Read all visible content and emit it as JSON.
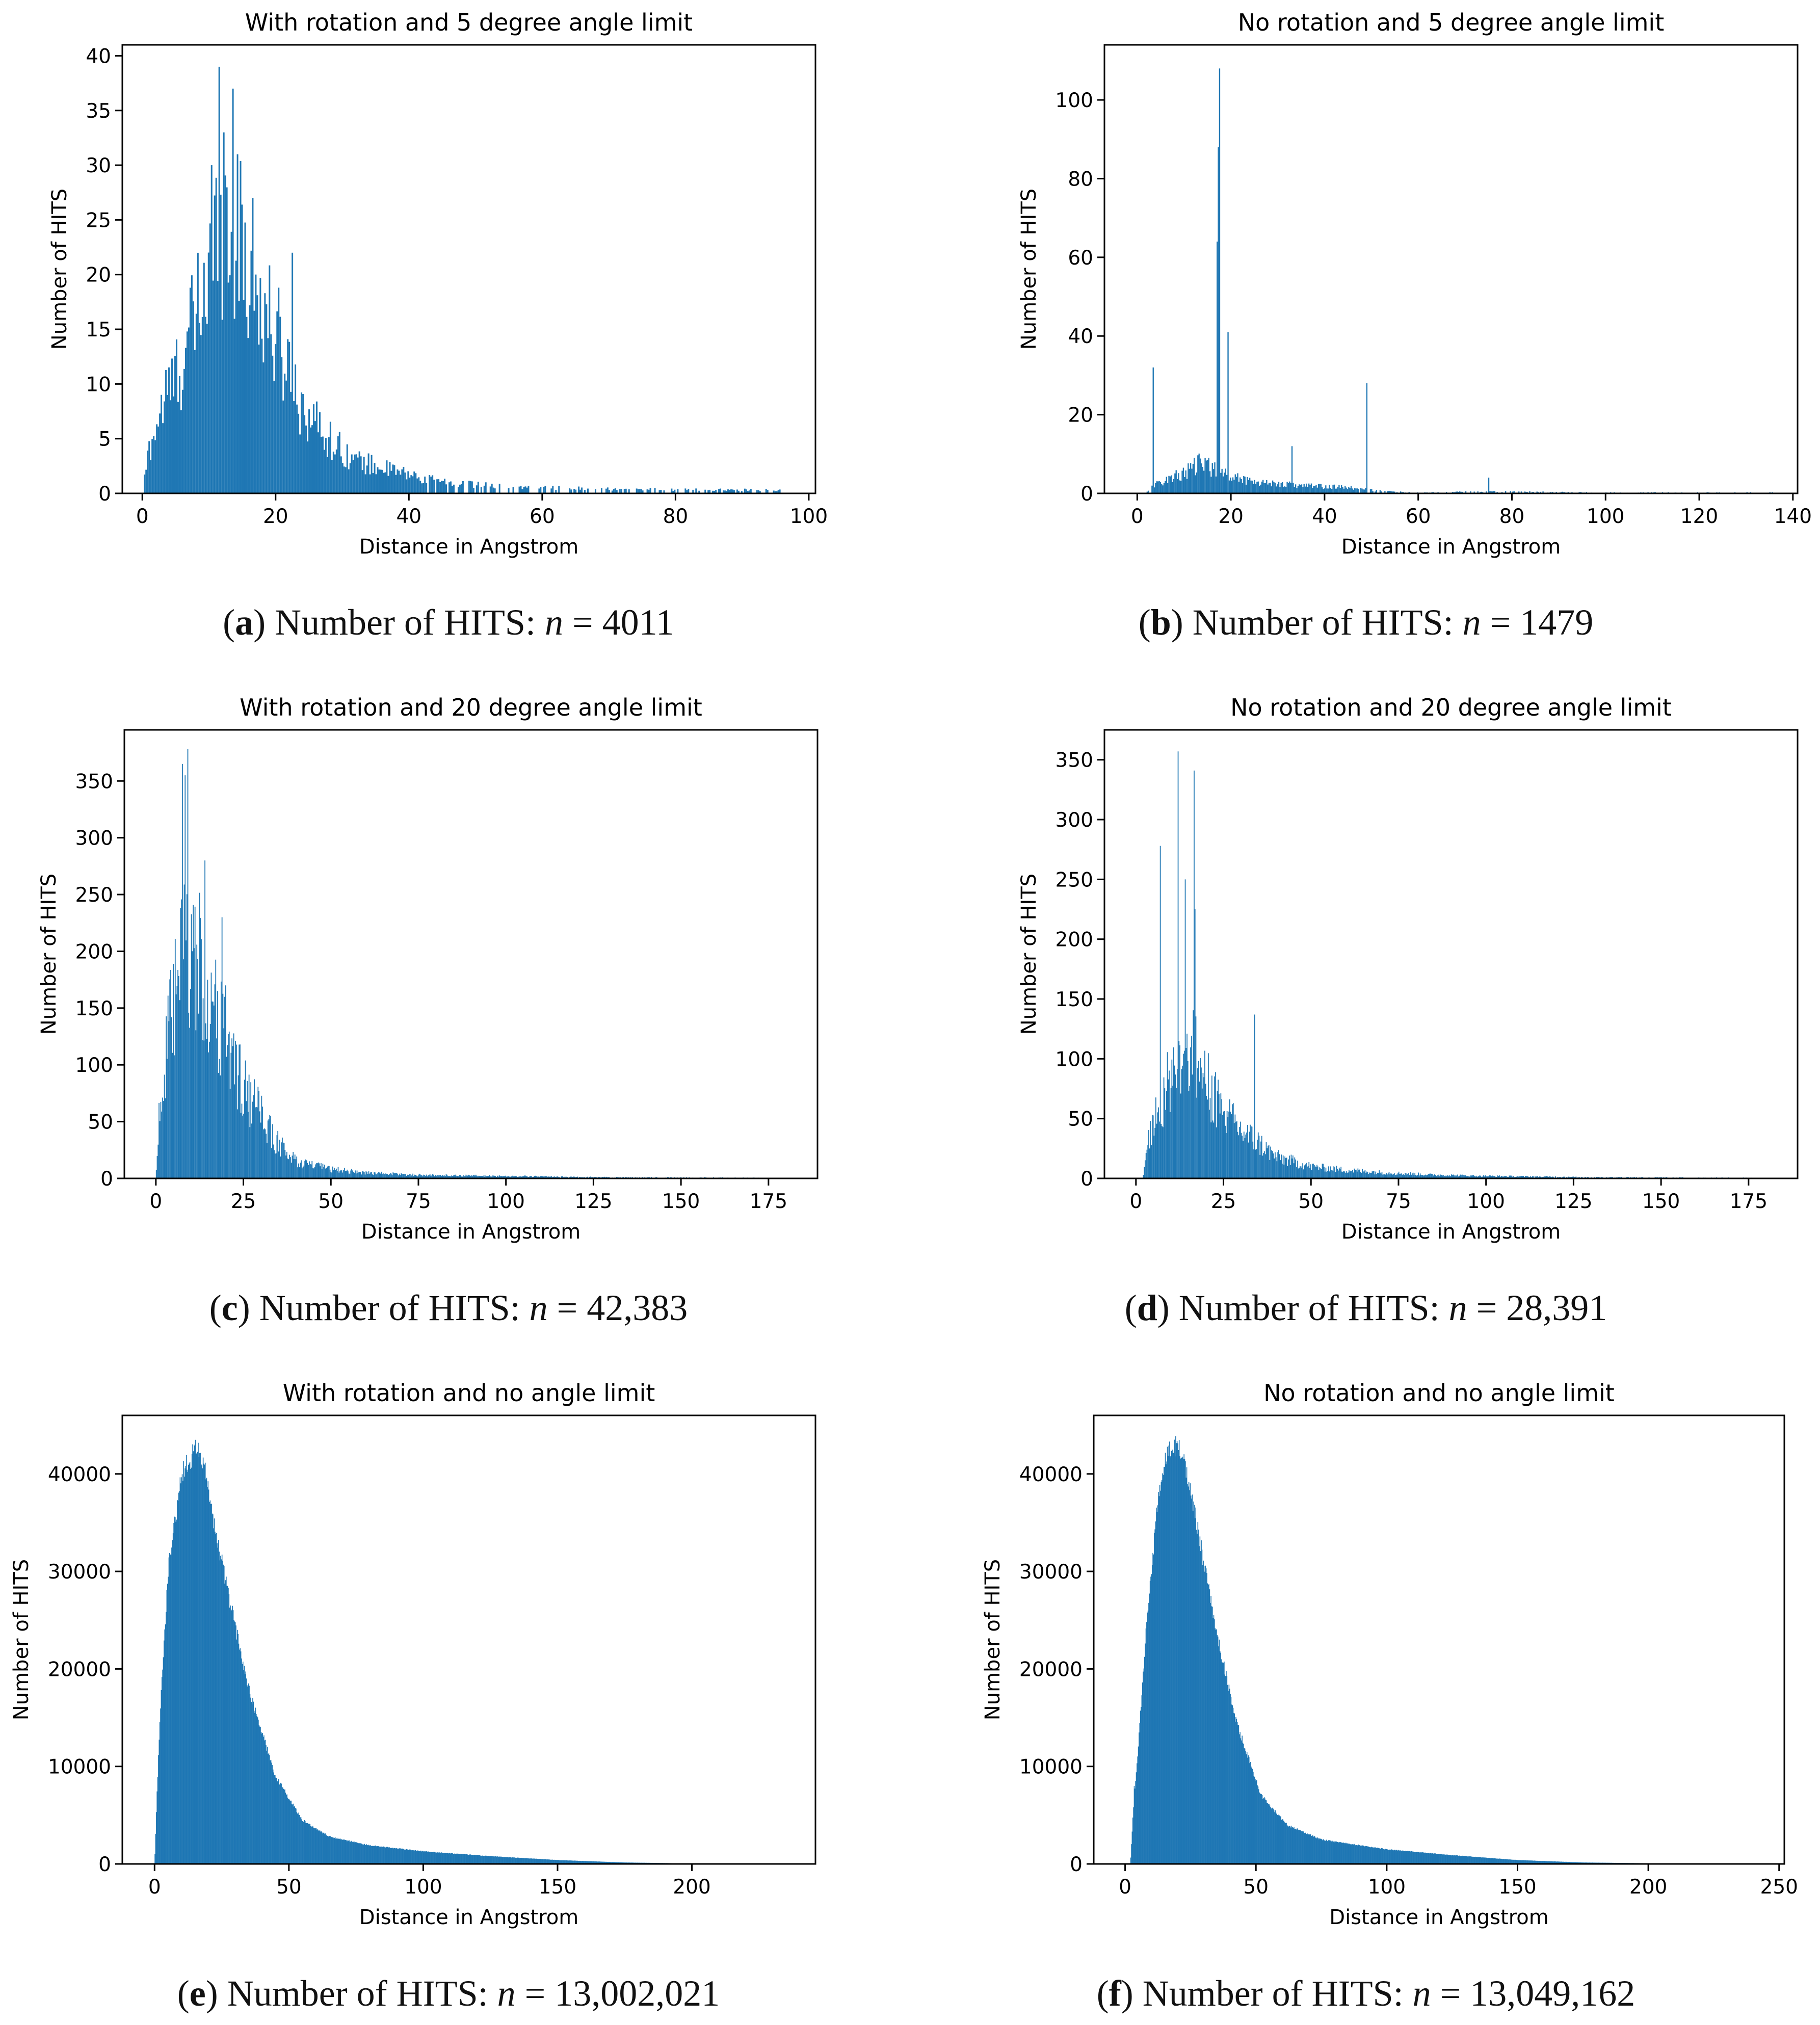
{
  "colors": {
    "bar": "#1f77b4"
  },
  "chart_data": [
    {
      "id": "a",
      "type": "bar",
      "title": "With rotation and 5 degree angle limit",
      "xlabel": "Distance in Angstrom",
      "ylabel": "Number of HITS",
      "xlim": [
        -3,
        101
      ],
      "ylim": [
        0,
        41
      ],
      "xticks": [
        0,
        20,
        40,
        60,
        80,
        100
      ],
      "yticks": [
        0,
        5,
        10,
        15,
        20,
        25,
        30,
        35,
        40
      ],
      "ytick_labels": [
        "0",
        "5",
        "10",
        "15",
        "20",
        "25",
        "30",
        "35",
        "40"
      ],
      "xtick_labels": [
        "0",
        "20",
        "40",
        "60",
        "80",
        "100"
      ],
      "data_range": [
        0,
        96
      ],
      "bins": 420,
      "peak": 39,
      "n": 4011,
      "profile": [
        [
          0,
          0
        ],
        [
          1,
          4
        ],
        [
          3,
          8
        ],
        [
          6,
          12
        ],
        [
          9,
          18
        ],
        [
          12,
          25
        ],
        [
          15,
          22
        ],
        [
          18,
          17
        ],
        [
          21,
          13
        ],
        [
          24,
          8
        ],
        [
          28,
          5
        ],
        [
          32,
          3
        ],
        [
          38,
          2
        ],
        [
          45,
          1
        ],
        [
          55,
          0.6
        ],
        [
          70,
          0.4
        ],
        [
          96,
          0.3
        ]
      ],
      "spikes": [
        [
          11.5,
          39
        ],
        [
          13.5,
          37
        ],
        [
          12.2,
          33
        ],
        [
          16.5,
          27
        ],
        [
          22.5,
          22
        ],
        [
          10.5,
          30
        ],
        [
          14.2,
          31
        ]
      ]
    },
    {
      "id": "b",
      "type": "bar",
      "title": "No rotation and 5 degree angle limit",
      "xlabel": "Distance in Angstrom",
      "ylabel": "Number of HITS",
      "xlim": [
        -7,
        141
      ],
      "ylim": [
        0,
        114
      ],
      "xticks": [
        0,
        20,
        40,
        60,
        80,
        100,
        120,
        140
      ],
      "yticks": [
        0,
        20,
        40,
        60,
        80,
        100
      ],
      "ytick_labels": [
        "0",
        "20",
        "40",
        "60",
        "80",
        "100"
      ],
      "xtick_labels": [
        "0",
        "20",
        "40",
        "60",
        "80",
        "100",
        "120",
        "140"
      ],
      "data_range": [
        2,
        136
      ],
      "bins": 520,
      "peak": 108,
      "n": 1479,
      "profile": [
        [
          2,
          0.5
        ],
        [
          5,
          3
        ],
        [
          10,
          5
        ],
        [
          14,
          8
        ],
        [
          18,
          5
        ],
        [
          25,
          3
        ],
        [
          35,
          2
        ],
        [
          45,
          1.5
        ],
        [
          52,
          0.6
        ],
        [
          60,
          0.2
        ],
        [
          75,
          0.5
        ],
        [
          100,
          0.2
        ],
        [
          136,
          0.2
        ]
      ],
      "spikes": [
        [
          17.5,
          108
        ],
        [
          17.3,
          88
        ],
        [
          17.1,
          64
        ],
        [
          19.5,
          41
        ],
        [
          49,
          28
        ],
        [
          3.5,
          32
        ],
        [
          33,
          12
        ],
        [
          75,
          4
        ]
      ]
    },
    {
      "id": "c",
      "type": "bar",
      "title": "With rotation and 20 degree angle limit",
      "xlabel": "Distance in Angstrom",
      "ylabel": "Number of HITS",
      "xlim": [
        -9,
        189
      ],
      "ylim": [
        0,
        395
      ],
      "xticks": [
        0,
        25,
        50,
        75,
        100,
        125,
        150,
        175
      ],
      "yticks": [
        0,
        50,
        100,
        150,
        200,
        250,
        300,
        350
      ],
      "ytick_labels": [
        "0",
        "50",
        "100",
        "150",
        "200",
        "250",
        "300",
        "350"
      ],
      "xtick_labels": [
        "0",
        "25",
        "50",
        "75",
        "100",
        "125",
        "150",
        "175"
      ],
      "data_range": [
        0,
        180
      ],
      "bins": 700,
      "peak": 378,
      "n": 42383,
      "profile": [
        [
          0,
          0
        ],
        [
          1,
          60
        ],
        [
          4,
          130
        ],
        [
          8,
          200
        ],
        [
          12,
          190
        ],
        [
          16,
          150
        ],
        [
          20,
          120
        ],
        [
          25,
          80
        ],
        [
          30,
          55
        ],
        [
          35,
          30
        ],
        [
          40,
          15
        ],
        [
          50,
          8
        ],
        [
          60,
          5
        ],
        [
          75,
          3
        ],
        [
          100,
          2
        ],
        [
          130,
          1
        ],
        [
          180,
          0.5
        ]
      ],
      "spikes": [
        [
          9,
          378
        ],
        [
          7.5,
          365
        ],
        [
          8.3,
          355
        ],
        [
          14,
          280
        ],
        [
          20,
          170
        ],
        [
          19,
          230
        ]
      ]
    },
    {
      "id": "d",
      "type": "bar",
      "title": "No rotation and 20 degree angle limit",
      "xlabel": "Distance in Angstrom",
      "ylabel": "Number of HITS",
      "xlim": [
        -9,
        189
      ],
      "ylim": [
        0,
        375
      ],
      "xticks": [
        0,
        25,
        50,
        75,
        100,
        125,
        150,
        175
      ],
      "yticks": [
        0,
        50,
        100,
        150,
        200,
        250,
        300,
        350
      ],
      "ytick_labels": [
        "0",
        "50",
        "100",
        "150",
        "200",
        "250",
        "300",
        "350"
      ],
      "xtick_labels": [
        "0",
        "25",
        "50",
        "75",
        "100",
        "125",
        "150",
        "175"
      ],
      "data_range": [
        2,
        180
      ],
      "bins": 700,
      "peak": 357,
      "n": 28391,
      "profile": [
        [
          2,
          0
        ],
        [
          4,
          40
        ],
        [
          8,
          70
        ],
        [
          12,
          100
        ],
        [
          16,
          110
        ],
        [
          20,
          80
        ],
        [
          25,
          55
        ],
        [
          30,
          40
        ],
        [
          35,
          30
        ],
        [
          40,
          18
        ],
        [
          50,
          10
        ],
        [
          60,
          7
        ],
        [
          70,
          5
        ],
        [
          85,
          3
        ],
        [
          100,
          2
        ],
        [
          130,
          1
        ],
        [
          180,
          0.5
        ]
      ],
      "spikes": [
        [
          12,
          357
        ],
        [
          16.5,
          341
        ],
        [
          7,
          278
        ],
        [
          34,
          137
        ],
        [
          17,
          225
        ],
        [
          14,
          250
        ]
      ]
    },
    {
      "id": "e",
      "type": "bar",
      "title": "With rotation and no angle limit",
      "xlabel": "Distance in Angstrom",
      "ylabel": "Number of HITS",
      "xlim": [
        -12,
        246
      ],
      "ylim": [
        0,
        46000
      ],
      "xticks": [
        0,
        50,
        100,
        150,
        200
      ],
      "yticks": [
        0,
        10000,
        20000,
        30000,
        40000
      ],
      "ytick_labels": [
        "0",
        "10000",
        "20000",
        "30000",
        "40000"
      ],
      "xtick_labels": [
        "0",
        "50",
        "100",
        "150",
        "200"
      ],
      "data_range": [
        0,
        234
      ],
      "bins": 900,
      "peak": 43500,
      "n": 13002021,
      "profile": [
        [
          0,
          0
        ],
        [
          1,
          8000
        ],
        [
          2,
          15000
        ],
        [
          5,
          30000
        ],
        [
          10,
          40000
        ],
        [
          15,
          42500
        ],
        [
          18,
          41500
        ],
        [
          22,
          35000
        ],
        [
          28,
          27000
        ],
        [
          35,
          18000
        ],
        [
          45,
          9000
        ],
        [
          55,
          4500
        ],
        [
          65,
          2800
        ],
        [
          80,
          1900
        ],
        [
          100,
          1300
        ],
        [
          125,
          800
        ],
        [
          150,
          400
        ],
        [
          175,
          150
        ],
        [
          200,
          50
        ],
        [
          234,
          0
        ]
      ],
      "spikes": []
    },
    {
      "id": "f",
      "type": "bar",
      "title": "No rotation and no angle limit",
      "xlabel": "Distance in Angstrom",
      "ylabel": "Number of HITS",
      "xlim": [
        -12,
        252
      ],
      "ylim": [
        0,
        46000
      ],
      "xticks": [
        0,
        50,
        100,
        150,
        200,
        250
      ],
      "yticks": [
        0,
        10000,
        20000,
        30000,
        40000
      ],
      "ytick_labels": [
        "0",
        "10000",
        "20000",
        "30000",
        "40000"
      ],
      "xtick_labels": [
        "0",
        "50",
        "100",
        "150",
        "200",
        "250"
      ],
      "data_range": [
        2,
        240
      ],
      "bins": 900,
      "peak": 44500,
      "n": 13049162,
      "profile": [
        [
          2,
          0
        ],
        [
          3,
          5000
        ],
        [
          5,
          12000
        ],
        [
          8,
          24000
        ],
        [
          12,
          36000
        ],
        [
          16,
          42000
        ],
        [
          20,
          43000
        ],
        [
          24,
          40000
        ],
        [
          28,
          34000
        ],
        [
          34,
          25000
        ],
        [
          42,
          15000
        ],
        [
          52,
          7000
        ],
        [
          62,
          4000
        ],
        [
          75,
          2500
        ],
        [
          100,
          1500
        ],
        [
          125,
          900
        ],
        [
          150,
          400
        ],
        [
          175,
          150
        ],
        [
          210,
          40
        ],
        [
          240,
          0
        ]
      ],
      "spikes": [
        [
          3.5,
          8000
        ]
      ]
    }
  ],
  "captions": [
    {
      "letter": "a",
      "label": "Number of HITS:",
      "var": "n",
      "eq": "=",
      "value": "4011"
    },
    {
      "letter": "b",
      "label": "Number of HITS:",
      "var": "n",
      "eq": "=",
      "value": "1479"
    },
    {
      "letter": "c",
      "label": "Number of HITS:",
      "var": "n",
      "eq": "=",
      "value": "42,383"
    },
    {
      "letter": "d",
      "label": "Number of HITS:",
      "var": "n",
      "eq": "=",
      "value": "28,391"
    },
    {
      "letter": "e",
      "label": "Number of HITS:",
      "var": "n",
      "eq": "=",
      "value": "13,002,021"
    },
    {
      "letter": "f",
      "label": "Number of HITS:",
      "var": "n",
      "eq": "=",
      "value": "13,049,162"
    }
  ]
}
